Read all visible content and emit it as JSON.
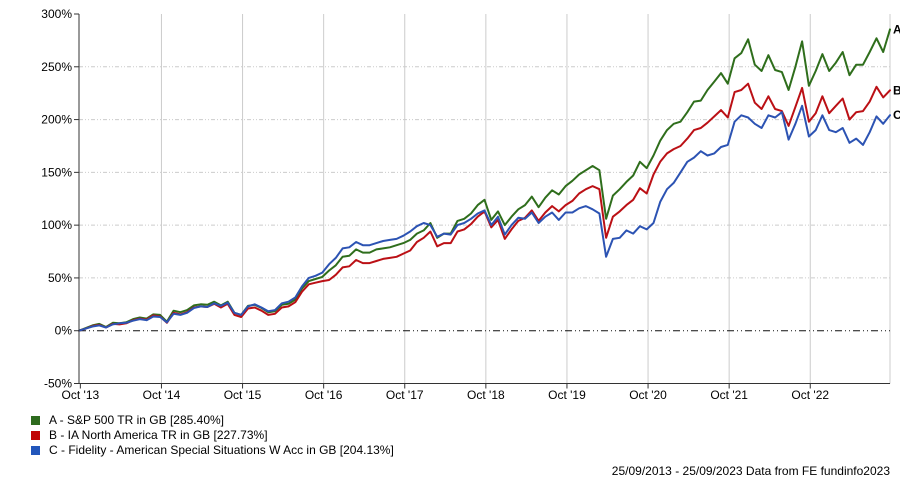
{
  "chart_data": {
    "type": "line",
    "title": "",
    "period_start": "25/09/2013",
    "period_end": "25/09/2023",
    "x_tick_labels": [
      "Oct '13",
      "Oct '14",
      "Oct '15",
      "Oct '16",
      "Oct '17",
      "Oct '18",
      "Oct '19",
      "Oct '20",
      "Oct '21",
      "Oct '22"
    ],
    "x_tick_month_positions": [
      0.2,
      12.2,
      24.2,
      36.2,
      48.2,
      60.2,
      72.2,
      84.2,
      96.2,
      108.2
    ],
    "x_months_total": 120,
    "y_tick_labels": [
      "300%",
      "250%",
      "200%",
      "150%",
      "100%",
      "50%",
      "0%",
      "-50%"
    ],
    "y_tick_values": [
      300,
      250,
      200,
      150,
      100,
      50,
      0,
      -50
    ],
    "ylim": [
      -50,
      300
    ],
    "grid_h_values": [
      250,
      200,
      150,
      100,
      50
    ],
    "zero_line_value": 0,
    "legend_position": "bottom-left",
    "series": [
      {
        "key": "A",
        "label": "S&P 500 TR in GB",
        "final_value_pct": 285.4,
        "color": "#2f6e1c",
        "values": [
          0,
          2.5,
          5,
          6.5,
          3.5,
          7.5,
          7,
          8,
          11,
          12.5,
          11.5,
          15.5,
          15,
          8.5,
          19,
          17.5,
          19.5,
          24,
          25,
          24.5,
          27.5,
          24,
          27.5,
          17,
          15,
          23.5,
          24.5,
          21.5,
          17.5,
          18.5,
          24.5,
          25.5,
          29.5,
          40,
          47,
          49,
          51,
          57,
          62,
          70,
          71,
          77,
          74,
          74,
          77,
          78,
          79,
          81,
          83,
          86,
          92,
          95,
          102,
          88,
          92,
          92,
          104,
          106,
          111,
          119,
          124,
          105,
          113,
          100,
          108,
          115,
          119,
          127,
          117,
          126,
          133,
          129,
          137,
          142,
          148,
          152,
          156,
          152,
          106,
          128,
          134,
          141,
          147,
          160,
          154,
          166,
          180,
          190,
          196,
          198,
          207,
          217,
          218,
          228,
          236,
          244,
          234,
          258,
          263,
          276,
          252,
          246,
          261,
          247,
          245,
          228,
          250,
          274,
          232,
          246,
          262,
          246,
          254,
          264,
          242,
          252,
          252,
          264,
          277,
          264,
          285.4
        ]
      },
      {
        "key": "B",
        "label": "IA North America TR in GB",
        "final_value_pct": 227.73,
        "color": "#bb1015",
        "values": [
          0,
          2,
          4.5,
          5.5,
          3,
          6.5,
          6,
          7,
          10,
          11.5,
          10.5,
          14.5,
          13.5,
          7.5,
          17,
          15.5,
          17.5,
          22,
          23,
          22.5,
          25.5,
          22,
          25.5,
          15,
          13,
          21,
          22,
          19,
          15,
          16,
          22,
          23,
          27,
          37,
          44,
          45.5,
          47,
          48,
          53,
          60,
          61,
          67,
          64,
          64,
          66,
          68,
          69,
          70,
          73,
          76,
          84,
          88,
          94,
          80,
          83,
          83,
          94,
          96,
          101,
          108,
          113,
          98,
          105,
          87,
          96,
          104,
          107,
          114,
          104,
          112,
          118,
          113,
          119,
          123,
          130,
          134,
          137,
          134,
          88,
          108,
          113,
          119,
          124,
          135,
          130,
          148,
          160,
          168,
          172,
          175,
          182,
          190,
          192,
          197,
          203,
          209,
          202,
          226,
          228,
          234,
          216,
          210,
          222,
          210,
          208,
          194,
          212,
          230,
          198,
          206,
          222,
          206,
          213,
          220,
          200,
          207,
          208,
          217,
          231,
          221,
          227.73
        ]
      },
      {
        "key": "C",
        "label": "Fidelity - American Special Situations W Acc in GB",
        "final_value_pct": 204.13,
        "color": "#2c53b3",
        "values": [
          0,
          2,
          4,
          5,
          3,
          6,
          7,
          7.5,
          9.5,
          11,
          10,
          13.5,
          13,
          8,
          16,
          15,
          17,
          21.5,
          23,
          22.5,
          26,
          23.5,
          26.5,
          17,
          15,
          23,
          25,
          22,
          18.5,
          19.5,
          26,
          27.5,
          31.5,
          42,
          50,
          52,
          55,
          63,
          69,
          78,
          79,
          84,
          81,
          81,
          83,
          85,
          86,
          87,
          90,
          94,
          99,
          102,
          100,
          89,
          92,
          91,
          100,
          102,
          106,
          111,
          114,
          100,
          108,
          91,
          100,
          107,
          106,
          112,
          102,
          108,
          112,
          105,
          112,
          112,
          116,
          118,
          115,
          111,
          70,
          87,
          88,
          95,
          92,
          99,
          96,
          102,
          122,
          134,
          140,
          150,
          160,
          164,
          170,
          166,
          168,
          174,
          176,
          198,
          204,
          202,
          196,
          192,
          204,
          202,
          207,
          181,
          196,
          213,
          184,
          190,
          204,
          190,
          188,
          192,
          178,
          182,
          176,
          188,
          203,
          196,
          204.13
        ]
      }
    ]
  },
  "legend": {
    "items": [
      {
        "key": "A",
        "label": "A - S&P 500 TR in GB [285.40%]",
        "color": "#2e6b1e"
      },
      {
        "key": "B",
        "label": "B - IA North America TR in GB [227.73%]",
        "color": "#c00505"
      },
      {
        "key": "C",
        "label": "C - Fidelity - American Special Situations W Acc in GB [204.13%]",
        "color": "#2256bb"
      }
    ]
  },
  "footer": {
    "text": "25/09/2013 - 25/09/2023 Data from FE fundinfo2023"
  },
  "colors": {
    "grid": "#cccccc",
    "vgrid": "#cccccc",
    "zero_line": "#111111",
    "axis": "#333333",
    "text": "#000000",
    "background": "#ffffff"
  }
}
